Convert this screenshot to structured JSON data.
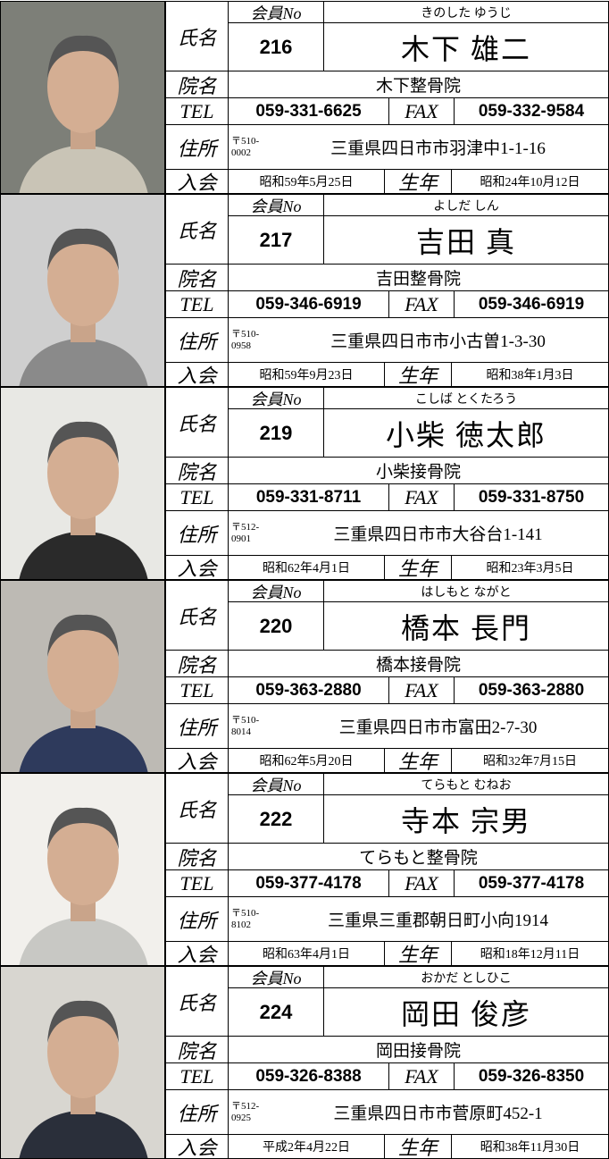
{
  "labels": {
    "name": "氏名",
    "member_no": "会員No",
    "clinic": "院名",
    "tel": "TEL",
    "fax": "FAX",
    "address": "住所",
    "joined": "入会",
    "born": "生年"
  },
  "records": [
    {
      "no": "216",
      "kana": "きのした ゆうじ",
      "name": "木下 雄二",
      "clinic": "木下整骨院",
      "tel": "059-331-6625",
      "fax": "059-332-9584",
      "postal": [
        "〒510-",
        "0002"
      ],
      "address": "三重県四日市市羽津中1-1-16",
      "joined": "昭和59年5月25日",
      "born": "昭和24年10月12日"
    },
    {
      "no": "217",
      "kana": "よしだ しん",
      "name": "吉田 真",
      "clinic": "吉田整骨院",
      "tel": "059-346-6919",
      "fax": "059-346-6919",
      "postal": [
        "〒510-",
        "0958"
      ],
      "address": "三重県四日市市小古曽1-3-30",
      "joined": "昭和59年9月23日",
      "born": "昭和38年1月3日"
    },
    {
      "no": "219",
      "kana": "こしば とくたろう",
      "name": "小柴 徳太郎",
      "clinic": "小柴接骨院",
      "tel": "059-331-8711",
      "fax": "059-331-8750",
      "postal": [
        "〒512-",
        "0901"
      ],
      "address": "三重県四日市市大谷台1-141",
      "joined": "昭和62年4月1日",
      "born": "昭和23年3月5日"
    },
    {
      "no": "220",
      "kana": "はしもと ながと",
      "name": "橋本 長門",
      "clinic": "橋本接骨院",
      "tel": "059-363-2880",
      "fax": "059-363-2880",
      "postal": [
        "〒510-",
        "8014"
      ],
      "address": "三重県四日市市富田2-7-30",
      "joined": "昭和62年5月20日",
      "born": "昭和32年7月15日"
    },
    {
      "no": "222",
      "kana": "てらもと むねお",
      "name": "寺本 宗男",
      "clinic": "てらもと整骨院",
      "tel": "059-377-4178",
      "fax": "059-377-4178",
      "postal": [
        "〒510-",
        "8102"
      ],
      "address": "三重県三重郡朝日町小向1914",
      "joined": "昭和63年4月1日",
      "born": "昭和18年12月11日"
    },
    {
      "no": "224",
      "kana": "おかだ としひこ",
      "name": "岡田 俊彦",
      "clinic": "岡田接骨院",
      "tel": "059-326-8388",
      "fax": "059-326-8350",
      "postal": [
        "〒512-",
        "0925"
      ],
      "address": "三重県四日市市菅原町452-1",
      "joined": "平成2年4月22日",
      "born": "昭和38年11月30日"
    }
  ]
}
